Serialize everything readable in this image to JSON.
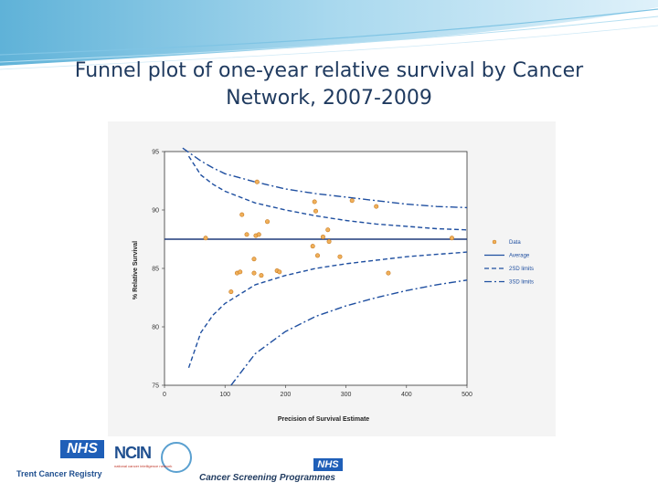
{
  "slide": {
    "title_line1": "Funnel plot of one-year relative survival by Cancer",
    "title_line2": "Network, 2007-2009"
  },
  "colors": {
    "title": "#1f3a5f",
    "line": "#1f4fa0",
    "point_fill": "#f0b05a",
    "point_stroke": "#c87a20"
  },
  "chart_data": {
    "type": "scatter",
    "xlabel": "Precision of Survival Estimate",
    "ylabel": "% Relative Survival",
    "xlim": [
      0,
      500
    ],
    "ylim": [
      75,
      95
    ],
    "xticks": [
      0,
      100,
      200,
      300,
      400,
      500
    ],
    "yticks": [
      75,
      80,
      85,
      90,
      95
    ],
    "grid": false,
    "legend_position": "right",
    "average": 87.5,
    "series": [
      {
        "name": "Data",
        "kind": "points",
        "points": [
          [
            68,
            87.6
          ],
          [
            110,
            83.0
          ],
          [
            120,
            84.6
          ],
          [
            125,
            84.7
          ],
          [
            128,
            89.6
          ],
          [
            136,
            87.9
          ],
          [
            148,
            85.8
          ],
          [
            148,
            84.6
          ],
          [
            151,
            87.8
          ],
          [
            153,
            92.4
          ],
          [
            156,
            87.9
          ],
          [
            160,
            84.4
          ],
          [
            170,
            89.0
          ],
          [
            186,
            84.8
          ],
          [
            190,
            84.7
          ],
          [
            245,
            86.9
          ],
          [
            248,
            90.7
          ],
          [
            250,
            89.9
          ],
          [
            253,
            86.1
          ],
          [
            262,
            87.7
          ],
          [
            270,
            88.3
          ],
          [
            272,
            87.3
          ],
          [
            290,
            86.0
          ],
          [
            310,
            90.8
          ],
          [
            350,
            90.3
          ],
          [
            370,
            84.6
          ],
          [
            475,
            87.6
          ]
        ]
      },
      {
        "name": "Average",
        "kind": "line",
        "style": "solid"
      },
      {
        "name": "2SD limits",
        "kind": "limits",
        "sd": 2,
        "style": "dashed",
        "upper": [
          [
            40,
            94.6
          ],
          [
            60,
            93.0
          ],
          [
            80,
            92.2
          ],
          [
            100,
            91.6
          ],
          [
            150,
            90.6
          ],
          [
            200,
            90.0
          ],
          [
            250,
            89.5
          ],
          [
            300,
            89.1
          ],
          [
            350,
            88.8
          ],
          [
            400,
            88.6
          ],
          [
            450,
            88.4
          ],
          [
            500,
            88.3
          ]
        ],
        "lower": [
          [
            40,
            76.5
          ],
          [
            60,
            79.5
          ],
          [
            80,
            81.0
          ],
          [
            100,
            82.0
          ],
          [
            150,
            83.6
          ],
          [
            200,
            84.4
          ],
          [
            250,
            85.0
          ],
          [
            300,
            85.4
          ],
          [
            350,
            85.7
          ],
          [
            400,
            86.0
          ],
          [
            450,
            86.2
          ],
          [
            500,
            86.4
          ]
        ]
      },
      {
        "name": "3SD limits",
        "kind": "limits",
        "sd": 3,
        "style": "dash-dot",
        "upper": [
          [
            30,
            95.3
          ],
          [
            60,
            94.2
          ],
          [
            80,
            93.6
          ],
          [
            100,
            93.1
          ],
          [
            150,
            92.4
          ],
          [
            200,
            91.8
          ],
          [
            250,
            91.4
          ],
          [
            300,
            91.1
          ],
          [
            350,
            90.8
          ],
          [
            400,
            90.5
          ],
          [
            450,
            90.3
          ],
          [
            500,
            90.2
          ]
        ],
        "lower": [
          [
            110,
            75.0
          ],
          [
            150,
            77.7
          ],
          [
            200,
            79.6
          ],
          [
            250,
            80.9
          ],
          [
            300,
            81.8
          ],
          [
            350,
            82.5
          ],
          [
            400,
            83.1
          ],
          [
            450,
            83.6
          ],
          [
            500,
            84.0
          ]
        ]
      }
    ]
  },
  "logos": {
    "trent_nhs": "NHS",
    "trent_name": "Trent Cancer Registry",
    "ncin_name": "NCIN",
    "ncin_sub": "national cancer intelligence network",
    "csp_nhs": "NHS",
    "csp_name": "Cancer Screening Programmes"
  }
}
